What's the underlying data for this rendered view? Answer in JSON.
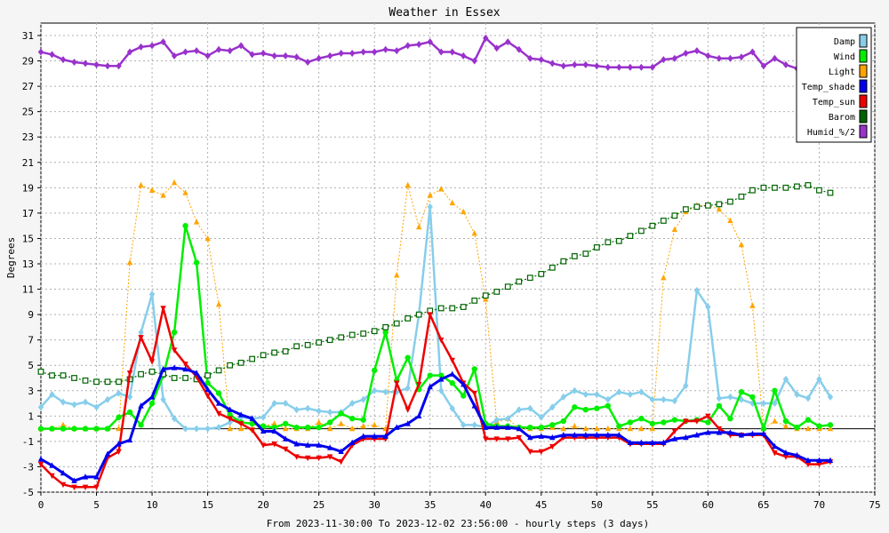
{
  "chart_data": {
    "type": "line",
    "title": "Weather in Essex",
    "xlabel": "From 2023-11-30:00 To 2023-12-02 23:56:00 - hourly steps (3 days)",
    "ylabel": "Degrees",
    "xlim": [
      0,
      75
    ],
    "ylim": [
      -5,
      32
    ],
    "x_ticks": [
      0,
      5,
      10,
      15,
      20,
      25,
      30,
      35,
      40,
      45,
      50,
      55,
      60,
      65,
      70,
      75
    ],
    "y_ticks": [
      -5,
      -3,
      -1,
      1,
      3,
      5,
      7,
      9,
      11,
      13,
      15,
      17,
      19,
      21,
      23,
      25,
      27,
      29,
      31
    ],
    "grid": true,
    "legend_position": "top-right",
    "series": [
      {
        "name": "Damp",
        "color": "#87ceeb",
        "marker": "diamond",
        "values": [
          1.7,
          2.7,
          2.1,
          1.9,
          2.1,
          1.7,
          2.3,
          2.8,
          2.5,
          7.6,
          10.6,
          2.3,
          0.8,
          0.0,
          0.0,
          0.0,
          0.1,
          0.5,
          0.9,
          0.8,
          0.9,
          2.0,
          2.0,
          1.5,
          1.6,
          1.4,
          1.3,
          1.3,
          2.0,
          2.3,
          3.0,
          2.9,
          2.9,
          3.2,
          9.0,
          17.5,
          3.0,
          1.6,
          0.3,
          0.3,
          0.1,
          0.7,
          0.8,
          1.5,
          1.6,
          0.9,
          1.7,
          2.5,
          3.0,
          2.7,
          2.7,
          2.3,
          2.9,
          2.7,
          2.9,
          2.3,
          2.3,
          2.2,
          3.4,
          10.9,
          9.6,
          2.4,
          2.5,
          2.3,
          2.0,
          2.0,
          2.0,
          3.9,
          2.7,
          2.4,
          3.9,
          2.5
        ]
      },
      {
        "name": "Wind",
        "color": "#00ee00",
        "marker": "circle",
        "values": [
          0.0,
          0.0,
          0.0,
          0.0,
          0.0,
          0.0,
          0.0,
          0.9,
          1.3,
          0.3,
          2.0,
          4.2,
          7.6,
          16.0,
          13.1,
          3.6,
          2.8,
          1.1,
          0.5,
          0.4,
          0.2,
          0.1,
          0.4,
          0.1,
          0.1,
          0.1,
          0.5,
          1.2,
          0.8,
          0.7,
          4.6,
          7.6,
          3.8,
          5.6,
          3.1,
          4.2,
          4.2,
          3.6,
          2.6,
          4.7,
          0.4,
          0.2,
          0.2,
          0.1,
          0.1,
          0.1,
          0.3,
          0.6,
          1.7,
          1.5,
          1.6,
          1.8,
          0.2,
          0.5,
          0.8,
          0.4,
          0.5,
          0.7,
          0.6,
          0.7,
          0.5,
          1.8,
          0.8,
          2.9,
          2.5,
          0.0,
          3.0,
          0.6,
          0.1,
          0.7,
          0.2,
          0.3
        ]
      },
      {
        "name": "Light",
        "color": "#ffa500",
        "marker": "triangle-up",
        "values": [
          0.0,
          0.0,
          0.3,
          0.0,
          0.0,
          0.0,
          0.0,
          0.0,
          13.1,
          19.2,
          18.8,
          18.4,
          19.4,
          18.6,
          16.3,
          15.0,
          9.8,
          0.0,
          0.0,
          0.0,
          0.2,
          0.4,
          0.0,
          0.0,
          0.0,
          0.5,
          0.0,
          0.4,
          0.0,
          0.2,
          0.3,
          0.0,
          12.1,
          19.2,
          15.9,
          18.4,
          18.9,
          17.8,
          17.1,
          15.4,
          10.2,
          0.5,
          0.8,
          0.0,
          0.0,
          0.0,
          0.1,
          0.0,
          0.2,
          0.0,
          0.0,
          0.0,
          0.0,
          0.0,
          0.0,
          0.0,
          11.9,
          15.7,
          17.1,
          17.6,
          17.6,
          17.3,
          16.4,
          14.5,
          9.7,
          0.0,
          0.6,
          0.2,
          0.0,
          0.0,
          0.0,
          0.0
        ]
      },
      {
        "name": "Temp_shade",
        "color": "#0000ee",
        "marker": "triangle-up",
        "values": [
          -2.4,
          -2.9,
          -3.5,
          -4.1,
          -3.8,
          -3.8,
          -2.0,
          -1.2,
          -0.9,
          1.8,
          2.5,
          4.7,
          4.8,
          4.7,
          4.4,
          3.1,
          2.0,
          1.5,
          1.1,
          0.8,
          -0.2,
          -0.2,
          -0.8,
          -1.2,
          -1.3,
          -1.3,
          -1.5,
          -1.8,
          -1.1,
          -0.6,
          -0.6,
          -0.6,
          0.1,
          0.4,
          1.0,
          3.3,
          3.9,
          4.3,
          3.5,
          1.8,
          0.1,
          0.1,
          0.1,
          0.0,
          -0.7,
          -0.6,
          -0.7,
          -0.5,
          -0.5,
          -0.5,
          -0.5,
          -0.5,
          -0.5,
          -1.1,
          -1.1,
          -1.1,
          -1.1,
          -0.8,
          -0.7,
          -0.5,
          -0.3,
          -0.3,
          -0.3,
          -0.5,
          -0.4,
          -0.4,
          -1.4,
          -1.9,
          -2.1,
          -2.5,
          -2.5,
          -2.5
        ]
      },
      {
        "name": "Temp_sun",
        "color": "#ee0000",
        "marker": "triangle-down",
        "values": [
          -2.8,
          -3.7,
          -4.4,
          -4.6,
          -4.6,
          -4.6,
          -2.3,
          -1.8,
          4.4,
          7.2,
          5.3,
          9.5,
          6.2,
          5.1,
          4.1,
          2.6,
          1.2,
          0.8,
          0.4,
          -0.1,
          -1.3,
          -1.2,
          -1.6,
          -2.2,
          -2.3,
          -2.3,
          -2.2,
          -2.6,
          -1.3,
          -0.8,
          -0.8,
          -0.8,
          3.6,
          1.5,
          3.5,
          9.0,
          7.0,
          5.4,
          3.6,
          2.8,
          -0.8,
          -0.8,
          -0.8,
          -0.7,
          -1.8,
          -1.8,
          -1.4,
          -0.7,
          -0.7,
          -0.7,
          -0.7,
          -0.7,
          -0.7,
          -1.2,
          -1.2,
          -1.2,
          -1.2,
          -0.2,
          0.6,
          0.6,
          1.0,
          0.0,
          -0.5,
          -0.5,
          -0.5,
          -0.5,
          -1.9,
          -2.2,
          -2.2,
          -2.8,
          -2.8,
          -2.6
        ]
      },
      {
        "name": "Barom",
        "color": "#006400",
        "marker": "square-open",
        "values": [
          4.5,
          4.2,
          4.2,
          4.0,
          3.8,
          3.7,
          3.7,
          3.7,
          3.9,
          4.3,
          4.5,
          4.3,
          4.0,
          4.0,
          3.9,
          4.2,
          4.6,
          5.0,
          5.2,
          5.5,
          5.8,
          6.0,
          6.1,
          6.5,
          6.6,
          6.8,
          7.0,
          7.2,
          7.4,
          7.5,
          7.7,
          8.0,
          8.3,
          8.7,
          9.0,
          9.3,
          9.5,
          9.5,
          9.6,
          10.1,
          10.5,
          10.8,
          11.2,
          11.6,
          11.9,
          12.2,
          12.7,
          13.2,
          13.6,
          13.8,
          14.3,
          14.7,
          14.8,
          15.2,
          15.6,
          16.0,
          16.4,
          16.8,
          17.3,
          17.5,
          17.6,
          17.7,
          17.9,
          18.3,
          18.8,
          19.0,
          19.0,
          19.0,
          19.1,
          19.2,
          18.8,
          18.6
        ]
      },
      {
        "name": "Humid_%/2",
        "color": "#9932cc",
        "marker": "diamond",
        "values": [
          29.7,
          29.5,
          29.1,
          28.9,
          28.8,
          28.7,
          28.6,
          28.6,
          29.7,
          30.1,
          30.2,
          30.5,
          29.4,
          29.7,
          29.8,
          29.4,
          29.9,
          29.8,
          30.2,
          29.5,
          29.6,
          29.4,
          29.4,
          29.3,
          28.9,
          29.2,
          29.4,
          29.6,
          29.6,
          29.7,
          29.7,
          29.9,
          29.8,
          30.2,
          30.3,
          30.5,
          29.7,
          29.7,
          29.4,
          29.0,
          30.8,
          30.0,
          30.5,
          29.9,
          29.2,
          29.1,
          28.8,
          28.6,
          28.7,
          28.7,
          28.6,
          28.5,
          28.5,
          28.5,
          28.5,
          28.5,
          29.1,
          29.2,
          29.6,
          29.8,
          29.4,
          29.2,
          29.2,
          29.3,
          29.7,
          28.6,
          29.2,
          28.7,
          28.4,
          28.2,
          28.3,
          28.4
        ]
      }
    ]
  }
}
